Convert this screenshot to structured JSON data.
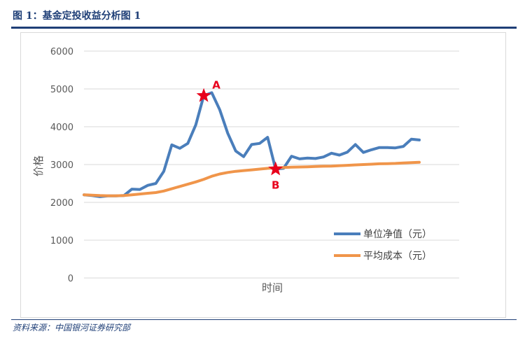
{
  "figure_title": "图 1：基金定投收益分析图 1",
  "source": "资料来源：中国银河证券研究部",
  "colors": {
    "navy": "#1f3f77",
    "nav_line": "#4a7ebb",
    "cost_line": "#f0954a",
    "star": "#e8001c",
    "grid": "#d9d9d9",
    "tick": "#595959"
  },
  "chart_data": {
    "type": "line",
    "xlabel": "时间",
    "ylabel": "价格",
    "ylim": [
      0,
      6000
    ],
    "yticks": [
      0,
      1000,
      2000,
      3000,
      4000,
      5000,
      6000
    ],
    "grid": true,
    "legend_position": "bottom-right",
    "x": [
      1,
      2,
      3,
      4,
      5,
      6,
      7,
      8,
      9,
      10,
      11,
      12,
      13,
      14,
      15,
      16,
      17,
      18,
      19,
      20,
      21,
      22,
      23,
      24,
      25,
      26,
      27,
      28,
      29,
      30,
      31,
      32,
      33,
      34,
      35,
      36,
      37,
      38,
      39,
      40,
      41,
      42,
      43,
      44,
      45,
      46,
      47,
      48
    ],
    "series": [
      {
        "name": "单位净值（元）",
        "color": "#4a7ebb",
        "values": [
          2200,
          2180,
          2150,
          2170,
          2170,
          2180,
          2350,
          2340,
          2450,
          2500,
          2820,
          3520,
          3430,
          3560,
          4050,
          4820,
          4900,
          4450,
          3830,
          3360,
          3210,
          3530,
          3560,
          3720,
          2880,
          2900,
          3220,
          3150,
          3170,
          3160,
          3200,
          3300,
          3250,
          3330,
          3530,
          3320,
          3390,
          3450,
          3450,
          3440,
          3480,
          3670,
          3650,
          null,
          null,
          null,
          null,
          null
        ]
      },
      {
        "name": "平均成本（元）",
        "color": "#f0954a",
        "values": [
          2200,
          2190,
          2180,
          2175,
          2175,
          2180,
          2200,
          2220,
          2240,
          2260,
          2300,
          2360,
          2420,
          2480,
          2540,
          2610,
          2690,
          2750,
          2790,
          2820,
          2840,
          2860,
          2880,
          2900,
          2910,
          2920,
          2930,
          2935,
          2940,
          2950,
          2955,
          2960,
          2970,
          2980,
          2990,
          3000,
          3010,
          3020,
          3025,
          3030,
          3040,
          3050,
          3060,
          null,
          null,
          null,
          null,
          null
        ]
      }
    ],
    "markers": [
      {
        "label": "A",
        "x": 16,
        "y": 4820
      },
      {
        "label": "B",
        "x": 25,
        "y": 2880
      }
    ]
  }
}
